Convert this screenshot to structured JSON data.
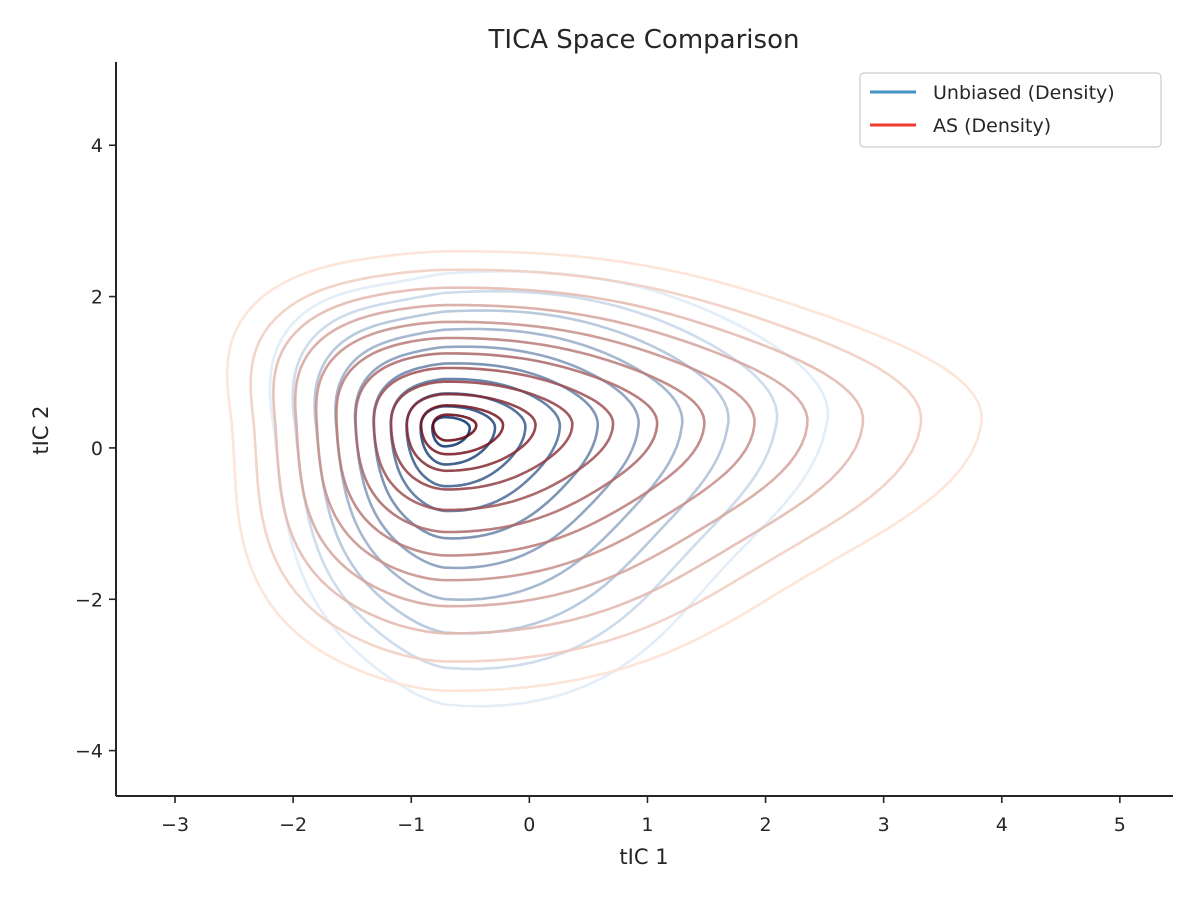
{
  "chart_data": {
    "type": "contour",
    "title": "TICA Space Comparison",
    "xlabel": "tIC 1",
    "ylabel": "tIC 2",
    "xlim": [
      -3.5,
      5.45
    ],
    "ylim": [
      -4.6,
      5.1
    ],
    "xticks": [
      -3,
      -2,
      -1,
      0,
      1,
      2,
      3,
      4,
      5
    ],
    "yticks": [
      -4,
      -2,
      0,
      2,
      4
    ],
    "grid": false,
    "legend_position": "top-right",
    "series": [
      {
        "name": "Unbiased (Density)",
        "legend_color": "#4292c6",
        "color_low": "#deebf7",
        "color_high": "#08306b",
        "center": [
          -0.72,
          0.26
        ],
        "outer_extent": {
          "x": [
            -2.2,
            2.4
          ],
          "y": [
            -3.2,
            2.4
          ]
        },
        "levels": 10
      },
      {
        "name": "AS (Density)",
        "legend_color": "#ef3b2c",
        "color_low": "#fee0d2",
        "color_high": "#67000d",
        "center": [
          -0.7,
          0.3
        ],
        "outer_extent": {
          "x": [
            -2.65,
            3.5
          ],
          "y": [
            -3.1,
            2.65
          ]
        },
        "levels": 12
      }
    ]
  }
}
